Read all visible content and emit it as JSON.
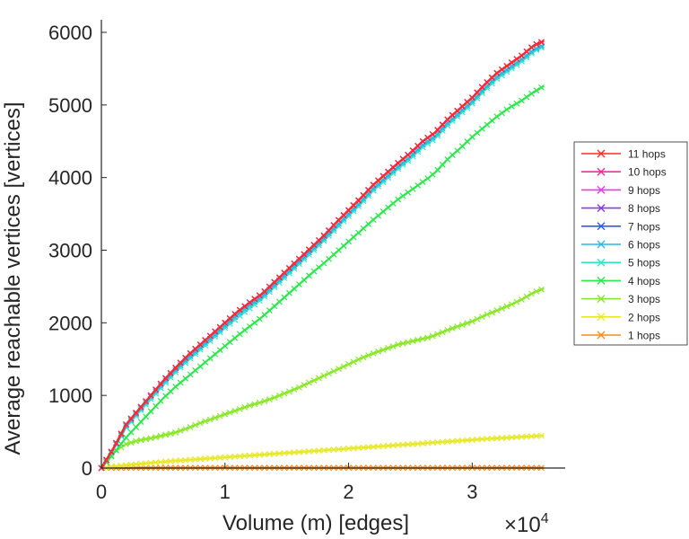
{
  "chart_data": {
    "type": "line",
    "xlabel": "Volume (m) [edges]",
    "ylabel": "Average reachable vertices [vertices]",
    "x_multiplier": "×10",
    "x_multiplier_exp": "4",
    "xlim": [
      0,
      36000
    ],
    "ylim": [
      0,
      6000
    ],
    "xticks": [
      0,
      10000,
      20000,
      30000
    ],
    "xtick_labels": [
      "0",
      "1",
      "2",
      "3"
    ],
    "yticks": [
      0,
      1000,
      2000,
      3000,
      4000,
      5000,
      6000
    ],
    "ytick_labels": [
      "0",
      "1000",
      "2000",
      "3000",
      "4000",
      "5000",
      "6000"
    ],
    "grid": false,
    "legend_position": "right",
    "x": [
      0,
      1000,
      2000,
      3000,
      4000,
      5000,
      6000,
      7000,
      8000,
      9000,
      10000,
      11000,
      12000,
      13000,
      14000,
      15000,
      16000,
      17000,
      18000,
      19000,
      20000,
      21000,
      22000,
      23000,
      24000,
      25000,
      26000,
      26500,
      27000,
      28000,
      29000,
      30000,
      31000,
      32000,
      33000,
      34000,
      35000,
      35800
    ],
    "series": [
      {
        "name": "11 hops",
        "color": "#ff2a2a",
        "values": [
          0,
          280,
          600,
          800,
          1000,
          1200,
          1380,
          1550,
          1700,
          1850,
          2000,
          2150,
          2280,
          2400,
          2560,
          2720,
          2880,
          3040,
          3200,
          3380,
          3550,
          3720,
          3900,
          4050,
          4200,
          4340,
          4500,
          4560,
          4620,
          4800,
          4950,
          5100,
          5280,
          5440,
          5560,
          5680,
          5820,
          5880
        ]
      },
      {
        "name": "10 hops",
        "color": "#ff2a9a",
        "values": [
          0,
          280,
          600,
          800,
          1000,
          1200,
          1380,
          1550,
          1700,
          1850,
          2000,
          2150,
          2280,
          2400,
          2560,
          2720,
          2880,
          3040,
          3200,
          3380,
          3550,
          3720,
          3900,
          4050,
          4200,
          4340,
          4500,
          4560,
          4620,
          4800,
          4950,
          5100,
          5280,
          5440,
          5560,
          5680,
          5820,
          5880
        ]
      },
      {
        "name": "9 hops",
        "color": "#e83be8",
        "values": [
          0,
          280,
          600,
          800,
          1000,
          1200,
          1380,
          1550,
          1700,
          1850,
          2000,
          2150,
          2280,
          2400,
          2560,
          2720,
          2880,
          3040,
          3200,
          3380,
          3550,
          3720,
          3900,
          4050,
          4200,
          4340,
          4500,
          4560,
          4620,
          4800,
          4950,
          5100,
          5280,
          5440,
          5560,
          5680,
          5820,
          5880
        ]
      },
      {
        "name": "8 hops",
        "color": "#8a3be8",
        "values": [
          0,
          280,
          600,
          800,
          1000,
          1200,
          1380,
          1550,
          1700,
          1850,
          2000,
          2150,
          2280,
          2400,
          2560,
          2720,
          2880,
          3040,
          3200,
          3380,
          3550,
          3720,
          3900,
          4050,
          4200,
          4340,
          4500,
          4560,
          4620,
          4800,
          4950,
          5100,
          5280,
          5440,
          5560,
          5680,
          5820,
          5880
        ]
      },
      {
        "name": "7 hops",
        "color": "#2a5ef0",
        "values": [
          0,
          280,
          600,
          800,
          1000,
          1200,
          1380,
          1550,
          1700,
          1850,
          2000,
          2150,
          2280,
          2400,
          2560,
          2720,
          2880,
          3040,
          3200,
          3380,
          3550,
          3720,
          3900,
          4050,
          4200,
          4340,
          4500,
          4560,
          4620,
          4800,
          4950,
          5100,
          5280,
          5440,
          5560,
          5680,
          5820,
          5880
        ]
      },
      {
        "name": "6 hops",
        "color": "#2ab6e8",
        "values": [
          0,
          270,
          580,
          780,
          980,
          1170,
          1350,
          1510,
          1660,
          1810,
          1960,
          2110,
          2240,
          2360,
          2520,
          2680,
          2840,
          3000,
          3160,
          3330,
          3500,
          3670,
          3850,
          4000,
          4150,
          4290,
          4450,
          4510,
          4570,
          4750,
          4900,
          5050,
          5230,
          5390,
          5510,
          5630,
          5760,
          5830
        ]
      },
      {
        "name": "5 hops",
        "color": "#2ae8c8",
        "values": [
          0,
          260,
          560,
          760,
          950,
          1140,
          1320,
          1480,
          1630,
          1780,
          1930,
          2070,
          2200,
          2330,
          2490,
          2650,
          2810,
          2970,
          3130,
          3300,
          3470,
          3640,
          3820,
          3970,
          4120,
          4260,
          4420,
          4480,
          4540,
          4720,
          4870,
          5020,
          5200,
          5360,
          5480,
          5600,
          5740,
          5810
        ]
      },
      {
        "name": "4 hops",
        "color": "#2ae84a",
        "values": [
          0,
          200,
          420,
          600,
          780,
          960,
          1120,
          1260,
          1400,
          1540,
          1680,
          1820,
          1950,
          2080,
          2230,
          2380,
          2530,
          2680,
          2820,
          2970,
          3120,
          3270,
          3420,
          3560,
          3700,
          3820,
          3940,
          4000,
          4070,
          4250,
          4400,
          4560,
          4700,
          4840,
          4960,
          5060,
          5180,
          5260
        ]
      },
      {
        "name": "3 hops",
        "color": "#8ae82a",
        "values": [
          0,
          220,
          330,
          380,
          410,
          450,
          490,
          550,
          620,
          680,
          740,
          800,
          860,
          910,
          970,
          1040,
          1110,
          1190,
          1270,
          1350,
          1430,
          1510,
          1580,
          1640,
          1700,
          1740,
          1780,
          1800,
          1830,
          1900,
          1960,
          2020,
          2100,
          2170,
          2240,
          2320,
          2420,
          2470
        ]
      },
      {
        "name": "2 hops",
        "color": "#e8e82a",
        "values": [
          0,
          20,
          40,
          55,
          70,
          85,
          100,
          112,
          124,
          136,
          148,
          160,
          172,
          184,
          196,
          208,
          220,
          232,
          244,
          256,
          268,
          280,
          292,
          304,
          316,
          328,
          340,
          346,
          352,
          364,
          376,
          388,
          400,
          410,
          420,
          430,
          440,
          445
        ]
      },
      {
        "name": "1 hops",
        "color": "#ff8a1a",
        "values": [
          0,
          1,
          1,
          2,
          2,
          2,
          2,
          3,
          3,
          3,
          3,
          3,
          3,
          3,
          3,
          3,
          3,
          3,
          3,
          3,
          3,
          3,
          3,
          3,
          3,
          3,
          3,
          3,
          3,
          3,
          3,
          3,
          3,
          3,
          3,
          3,
          3,
          3
        ]
      }
    ]
  }
}
